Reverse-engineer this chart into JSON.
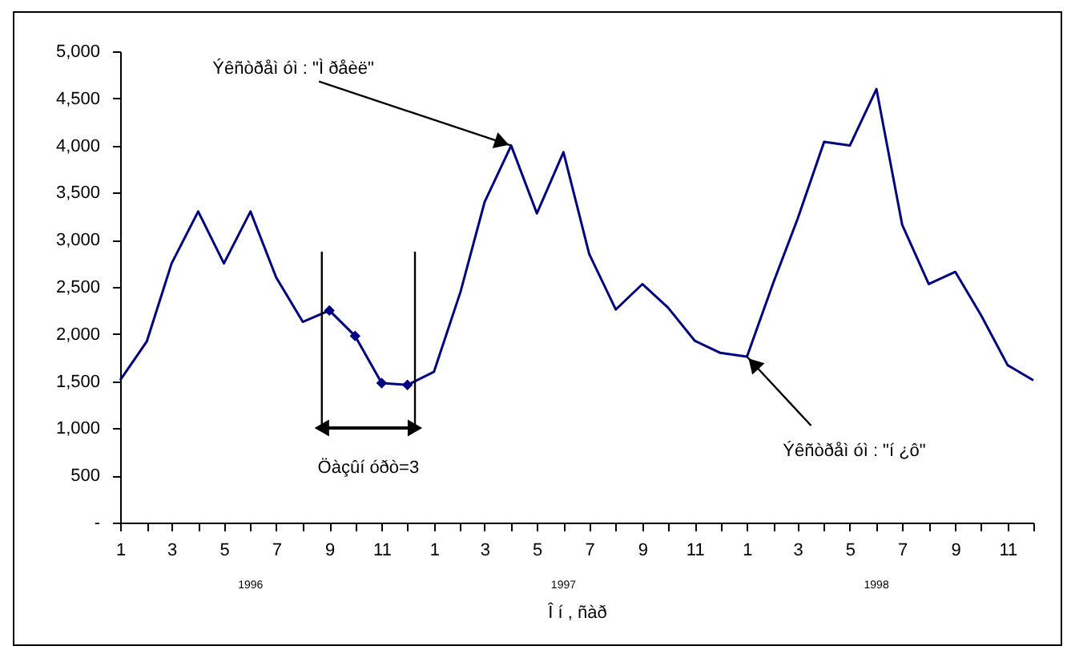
{
  "chart_data": {
    "type": "line",
    "xlabel": "Î í , ñàð",
    "x": [
      "1996-01",
      "1996-02",
      "1996-03",
      "1996-04",
      "1996-05",
      "1996-06",
      "1996-07",
      "1996-08",
      "1996-09",
      "1996-10",
      "1996-11",
      "1996-12",
      "1997-01",
      "1997-02",
      "1997-03",
      "1997-04",
      "1997-05",
      "1997-06",
      "1997-07",
      "1997-08",
      "1997-09",
      "1997-10",
      "1997-11",
      "1997-12",
      "1998-01",
      "1998-02",
      "1998-03",
      "1998-04",
      "1998-05",
      "1998-06",
      "1998-07",
      "1998-08",
      "1998-09",
      "1998-10",
      "1998-11",
      "1998-12"
    ],
    "series": [
      {
        "color": "#000080",
        "values": [
          1510,
          1920,
          2750,
          3300,
          2750,
          3300,
          2600,
          2130,
          2250,
          1980,
          1480,
          1460,
          1600,
          2450,
          3400,
          4000,
          3280,
          3930,
          2850,
          2260,
          2530,
          2280,
          1930,
          1800,
          1760,
          2550,
          3220,
          4040,
          4000,
          4600,
          3160,
          2530,
          2660,
          2200,
          1670,
          1510
        ]
      },
      {
        "type": "scatter",
        "marker": "diamond",
        "color": "#000080",
        "x": [
          "1996-09",
          "1996-10",
          "1996-11",
          "1996-12"
        ],
        "values": [
          2250,
          1980,
          1480,
          1460
        ]
      }
    ],
    "xlim": [
      "1996-01",
      "1998-12"
    ],
    "xticks": [
      {
        "value": "1996-01",
        "label": "1"
      },
      {
        "value": "1996-02",
        "label": null
      },
      {
        "value": "1996-03",
        "label": "3"
      },
      {
        "value": "1996-04",
        "label": null
      },
      {
        "value": "1996-05",
        "label": "5"
      },
      {
        "value": "1996-06",
        "label": null
      },
      {
        "value": "1996-07",
        "label": "7"
      },
      {
        "value": "1996-08",
        "label": null
      },
      {
        "value": "1996-09",
        "label": "9"
      },
      {
        "value": "1996-10",
        "label": null
      },
      {
        "value": "1996-11",
        "label": "11"
      },
      {
        "value": "1996-12",
        "label": null
      },
      {
        "value": "1997-01",
        "label": "1"
      },
      {
        "value": "1997-02",
        "label": null
      },
      {
        "value": "1997-03",
        "label": "3"
      },
      {
        "value": "1997-04",
        "label": null
      },
      {
        "value": "1997-05",
        "label": "5"
      },
      {
        "value": "1997-06",
        "label": null
      },
      {
        "value": "1997-07",
        "label": "7"
      },
      {
        "value": "1997-08",
        "label": null
      },
      {
        "value": "1997-09",
        "label": "9"
      },
      {
        "value": "1997-10",
        "label": null
      },
      {
        "value": "1997-11",
        "label": "11"
      },
      {
        "value": "1997-12",
        "label": null
      },
      {
        "value": "1998-01",
        "label": "1"
      },
      {
        "value": "1998-02",
        "label": null
      },
      {
        "value": "1998-03",
        "label": "3"
      },
      {
        "value": "1998-04",
        "label": null
      },
      {
        "value": "1998-05",
        "label": "5"
      },
      {
        "value": "1998-06",
        "label": null
      },
      {
        "value": "1998-07",
        "label": "7"
      },
      {
        "value": "1998-08",
        "label": null
      },
      {
        "value": "1998-09",
        "label": "9"
      },
      {
        "value": "1998-10",
        "label": null
      },
      {
        "value": "1998-11",
        "label": "11"
      },
      {
        "value": "1998-12",
        "label": null
      }
    ],
    "ylim": [
      0,
      5000
    ],
    "yticks": [
      {
        "value": 0,
        "label": "-"
      },
      {
        "value": 500,
        "label": "500"
      },
      {
        "value": 1000,
        "label": "1,000"
      },
      {
        "value": 1500,
        "label": "1,500"
      },
      {
        "value": 2000,
        "label": "2,000"
      },
      {
        "value": 2500,
        "label": "2,500"
      },
      {
        "value": 3000,
        "label": "3,000"
      },
      {
        "value": 3500,
        "label": "3,500"
      },
      {
        "value": 4000,
        "label": "4,000"
      },
      {
        "value": 4500,
        "label": "4,500"
      },
      {
        "value": 5000,
        "label": "5,000"
      }
    ],
    "annotations": [
      {
        "text": "Ýêñòðåì óì : \"Ì ðåèë\"",
        "x": "1997-04",
        "y": 4000
      },
      {
        "text": "Ýêñòðåì óì : \"í ¿ô\"",
        "x": "1998-01",
        "y": 1760
      },
      "Öàçûí óðò=3",
      "1996",
      "1997",
      "1998"
    ]
  }
}
